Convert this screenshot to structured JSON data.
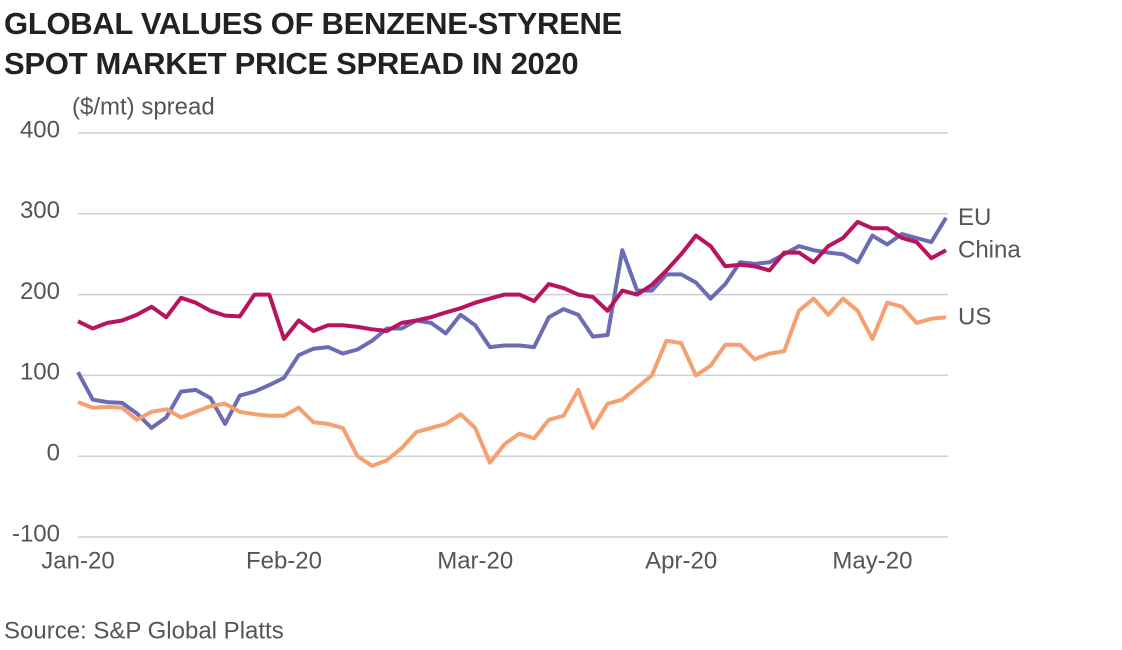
{
  "chart_data": {
    "type": "line",
    "title": "GLOBAL VALUES OF BENZENE-STYRENE SPOT MARKET PRICE SPREAD IN 2020",
    "y_label": "($/mt) spread",
    "source": "Source: S&P Global Platts",
    "categories": [
      "Jan-20",
      null,
      null,
      null,
      null,
      null,
      null,
      null,
      null,
      null,
      null,
      null,
      null,
      null,
      "Feb-20",
      null,
      null,
      null,
      null,
      null,
      null,
      null,
      null,
      null,
      null,
      null,
      null,
      "Mar-20",
      null,
      null,
      null,
      null,
      null,
      null,
      null,
      null,
      null,
      null,
      null,
      null,
      null,
      "Apr-20",
      null,
      null,
      null,
      null,
      null,
      null,
      null,
      null,
      null,
      null,
      null,
      null,
      "May-20",
      null,
      null,
      null,
      null,
      null
    ],
    "series": [
      {
        "name": "EU",
        "color": "#6c6cb4",
        "values": [
          104,
          70,
          67,
          66,
          53,
          35,
          48,
          80,
          82,
          72,
          40,
          75,
          80,
          88,
          97,
          125,
          133,
          135,
          127,
          132,
          143,
          158,
          158,
          168,
          165,
          152,
          175,
          162,
          135,
          137,
          137,
          135,
          172,
          182,
          175,
          148,
          150,
          255,
          205,
          205,
          225,
          225,
          215,
          195,
          213,
          240,
          238,
          240,
          250,
          260,
          255,
          252,
          250,
          240,
          273,
          262,
          275,
          270,
          265,
          295
        ]
      },
      {
        "name": "China",
        "color": "#b8145e",
        "values": [
          167,
          158,
          165,
          168,
          175,
          185,
          172,
          196,
          190,
          180,
          174,
          173,
          200,
          200,
          145,
          168,
          155,
          162,
          162,
          160,
          157,
          155,
          165,
          168,
          172,
          178,
          183,
          190,
          195,
          200,
          200,
          192,
          213,
          208,
          200,
          197,
          180,
          205,
          200,
          212,
          230,
          250,
          273,
          260,
          235,
          237,
          235,
          230,
          252,
          252,
          240,
          260,
          270,
          290,
          282,
          282,
          270,
          265,
          245,
          255
        ]
      },
      {
        "name": "US",
        "color": "#f4a070",
        "values": [
          67,
          60,
          61,
          60,
          45,
          55,
          58,
          48,
          55,
          62,
          65,
          55,
          52,
          50,
          50,
          60,
          42,
          40,
          35,
          0,
          -12,
          -5,
          10,
          30,
          35,
          40,
          52,
          35,
          -8,
          15,
          28,
          22,
          45,
          50,
          82,
          35,
          65,
          70,
          85,
          100,
          143,
          140,
          100,
          112,
          138,
          138,
          120,
          127,
          130,
          180,
          195,
          175,
          195,
          180,
          145,
          190,
          185,
          165,
          170,
          172
        ]
      }
    ],
    "ylim": [
      -100,
      400
    ],
    "yticks": [
      -100,
      0,
      100,
      200,
      300,
      400
    ],
    "grid": true
  }
}
